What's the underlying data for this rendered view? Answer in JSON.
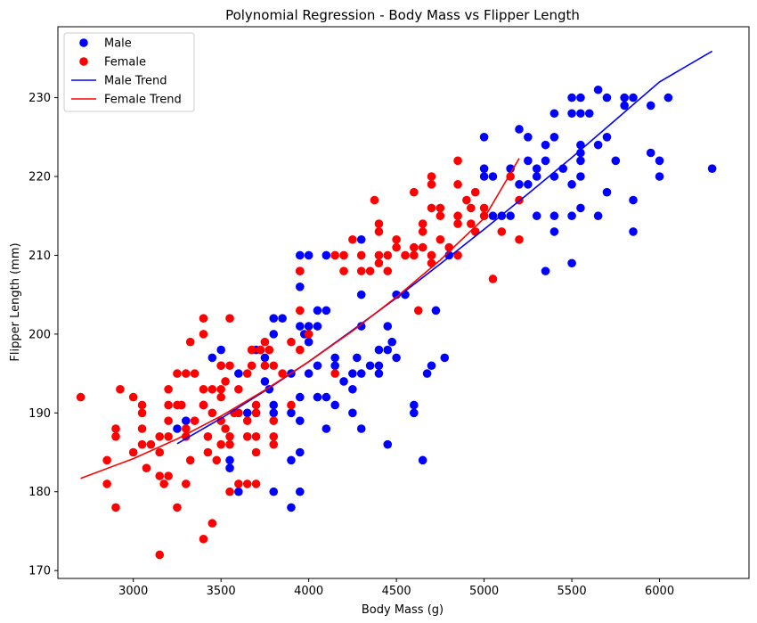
{
  "chart_data": {
    "type": "scatter",
    "title": "Polynomial Regression - Body Mass vs Flipper Length",
    "xlabel": "Body Mass (g)",
    "ylabel": "Flipper Length (mm)",
    "xlim": [
      2570,
      6510
    ],
    "ylim": [
      169,
      239
    ],
    "xticks": [
      3000,
      3500,
      4000,
      4500,
      5000,
      5500,
      6000
    ],
    "yticks": [
      170,
      180,
      190,
      200,
      210,
      220,
      230
    ],
    "grid": false,
    "legend_position": "top-left",
    "series": [
      {
        "name": "Male",
        "kind": "scatter",
        "color": "#0000ff",
        "points": [
          [
            3250,
            188
          ],
          [
            3300,
            189
          ],
          [
            3400,
            191
          ],
          [
            3450,
            197
          ],
          [
            3500,
            198
          ],
          [
            3500,
            196
          ],
          [
            3550,
            184
          ],
          [
            3550,
            183
          ],
          [
            3600,
            195
          ],
          [
            3600,
            180
          ],
          [
            3650,
            190
          ],
          [
            3700,
            198
          ],
          [
            3700,
            190
          ],
          [
            3750,
            197
          ],
          [
            3750,
            194
          ],
          [
            3775,
            193
          ],
          [
            3800,
            200
          ],
          [
            3800,
            202
          ],
          [
            3800,
            191
          ],
          [
            3800,
            190
          ],
          [
            3800,
            180
          ],
          [
            3850,
            202
          ],
          [
            3900,
            195
          ],
          [
            3900,
            190
          ],
          [
            3900,
            184
          ],
          [
            3900,
            178
          ],
          [
            3950,
            210
          ],
          [
            3950,
            206
          ],
          [
            3950,
            208
          ],
          [
            3950,
            201
          ],
          [
            3950,
            192
          ],
          [
            3950,
            189
          ],
          [
            3950,
            185
          ],
          [
            3950,
            180
          ],
          [
            3975,
            200
          ],
          [
            4000,
            210
          ],
          [
            4000,
            201
          ],
          [
            4000,
            199
          ],
          [
            4000,
            195
          ],
          [
            4050,
            203
          ],
          [
            4050,
            201
          ],
          [
            4050,
            196
          ],
          [
            4050,
            192
          ],
          [
            4100,
            210
          ],
          [
            4100,
            203
          ],
          [
            4100,
            192
          ],
          [
            4100,
            188
          ],
          [
            4150,
            197
          ],
          [
            4150,
            196
          ],
          [
            4150,
            191
          ],
          [
            4200,
            194
          ],
          [
            4250,
            195
          ],
          [
            4250,
            193
          ],
          [
            4250,
            190
          ],
          [
            4275,
            197
          ],
          [
            4300,
            212
          ],
          [
            4300,
            205
          ],
          [
            4300,
            201
          ],
          [
            4300,
            195
          ],
          [
            4300,
            188
          ],
          [
            4350,
            196
          ],
          [
            4400,
            198
          ],
          [
            4400,
            196
          ],
          [
            4400,
            195
          ],
          [
            4450,
            201
          ],
          [
            4450,
            198
          ],
          [
            4450,
            186
          ],
          [
            4475,
            199
          ],
          [
            4500,
            205
          ],
          [
            4500,
            197
          ],
          [
            4550,
            205
          ],
          [
            4600,
            191
          ],
          [
            4600,
            190
          ],
          [
            4650,
            184
          ],
          [
            4675,
            195
          ],
          [
            4700,
            196
          ],
          [
            4725,
            203
          ],
          [
            4775,
            197
          ],
          [
            4800,
            210
          ],
          [
            5000,
            225
          ],
          [
            5000,
            221
          ],
          [
            5000,
            220
          ],
          [
            5050,
            220
          ],
          [
            5050,
            215
          ],
          [
            5100,
            215
          ],
          [
            5150,
            221
          ],
          [
            5150,
            215
          ],
          [
            5200,
            226
          ],
          [
            5200,
            219
          ],
          [
            5250,
            225
          ],
          [
            5250,
            222
          ],
          [
            5250,
            219
          ],
          [
            5300,
            221
          ],
          [
            5300,
            220
          ],
          [
            5300,
            215
          ],
          [
            5350,
            224
          ],
          [
            5350,
            222
          ],
          [
            5350,
            208
          ],
          [
            5400,
            228
          ],
          [
            5400,
            225
          ],
          [
            5400,
            220
          ],
          [
            5400,
            215
          ],
          [
            5400,
            213
          ],
          [
            5450,
            221
          ],
          [
            5500,
            230
          ],
          [
            5500,
            228
          ],
          [
            5500,
            219
          ],
          [
            5500,
            215
          ],
          [
            5500,
            209
          ],
          [
            5550,
            230
          ],
          [
            5550,
            228
          ],
          [
            5550,
            224
          ],
          [
            5550,
            223
          ],
          [
            5550,
            222
          ],
          [
            5550,
            220
          ],
          [
            5550,
            216
          ],
          [
            5600,
            228
          ],
          [
            5650,
            231
          ],
          [
            5650,
            224
          ],
          [
            5650,
            215
          ],
          [
            5700,
            230
          ],
          [
            5700,
            225
          ],
          [
            5700,
            218
          ],
          [
            5750,
            222
          ],
          [
            5800,
            230
          ],
          [
            5800,
            229
          ],
          [
            5850,
            230
          ],
          [
            5850,
            217
          ],
          [
            5850,
            213
          ],
          [
            5950,
            229
          ],
          [
            5950,
            223
          ],
          [
            6000,
            222
          ],
          [
            6000,
            220
          ],
          [
            6050,
            230
          ],
          [
            6300,
            221
          ]
        ]
      },
      {
        "name": "Female",
        "kind": "scatter",
        "color": "#ff0000",
        "points": [
          [
            2700,
            192
          ],
          [
            2850,
            184
          ],
          [
            2850,
            181
          ],
          [
            2900,
            188
          ],
          [
            2900,
            187
          ],
          [
            2900,
            178
          ],
          [
            2925,
            193
          ],
          [
            3000,
            192
          ],
          [
            3000,
            185
          ],
          [
            3050,
            191
          ],
          [
            3050,
            190
          ],
          [
            3050,
            188
          ],
          [
            3050,
            186
          ],
          [
            3075,
            183
          ],
          [
            3100,
            186
          ],
          [
            3150,
            187
          ],
          [
            3150,
            185
          ],
          [
            3150,
            182
          ],
          [
            3150,
            172
          ],
          [
            3175,
            181
          ],
          [
            3200,
            193
          ],
          [
            3200,
            191
          ],
          [
            3200,
            189
          ],
          [
            3200,
            187
          ],
          [
            3200,
            182
          ],
          [
            3250,
            195
          ],
          [
            3250,
            191
          ],
          [
            3250,
            178
          ],
          [
            3275,
            191
          ],
          [
            3300,
            195
          ],
          [
            3300,
            188
          ],
          [
            3300,
            187
          ],
          [
            3300,
            181
          ],
          [
            3325,
            199
          ],
          [
            3325,
            184
          ],
          [
            3350,
            195
          ],
          [
            3350,
            189
          ],
          [
            3400,
            202
          ],
          [
            3400,
            200
          ],
          [
            3400,
            193
          ],
          [
            3400,
            191
          ],
          [
            3400,
            174
          ],
          [
            3425,
            187
          ],
          [
            3425,
            185
          ],
          [
            3450,
            193
          ],
          [
            3450,
            190
          ],
          [
            3450,
            176
          ],
          [
            3475,
            184
          ],
          [
            3500,
            196
          ],
          [
            3500,
            193
          ],
          [
            3500,
            192
          ],
          [
            3500,
            189
          ],
          [
            3500,
            186
          ],
          [
            3525,
            194
          ],
          [
            3525,
            188
          ],
          [
            3550,
            202
          ],
          [
            3550,
            196
          ],
          [
            3550,
            187
          ],
          [
            3550,
            186
          ],
          [
            3550,
            180
          ],
          [
            3575,
            190
          ],
          [
            3600,
            193
          ],
          [
            3600,
            190
          ],
          [
            3600,
            181
          ],
          [
            3650,
            195
          ],
          [
            3650,
            189
          ],
          [
            3650,
            187
          ],
          [
            3650,
            181
          ],
          [
            3675,
            196
          ],
          [
            3675,
            198
          ],
          [
            3700,
            191
          ],
          [
            3700,
            190
          ],
          [
            3700,
            187
          ],
          [
            3700,
            185
          ],
          [
            3700,
            181
          ],
          [
            3725,
            198
          ],
          [
            3750,
            199
          ],
          [
            3750,
            196
          ],
          [
            3775,
            198
          ],
          [
            3800,
            196
          ],
          [
            3800,
            189
          ],
          [
            3800,
            187
          ],
          [
            3800,
            186
          ],
          [
            3850,
            195
          ],
          [
            3900,
            199
          ],
          [
            3900,
            191
          ],
          [
            3950,
            208
          ],
          [
            3950,
            203
          ],
          [
            3950,
            198
          ],
          [
            4000,
            200
          ],
          [
            4150,
            210
          ],
          [
            4150,
            195
          ],
          [
            4200,
            210
          ],
          [
            4200,
            208
          ],
          [
            4250,
            212
          ],
          [
            4300,
            210
          ],
          [
            4300,
            208
          ],
          [
            4350,
            208
          ],
          [
            4375,
            217
          ],
          [
            4400,
            214
          ],
          [
            4400,
            213
          ],
          [
            4400,
            210
          ],
          [
            4400,
            209
          ],
          [
            4450,
            210
          ],
          [
            4450,
            208
          ],
          [
            4500,
            212
          ],
          [
            4500,
            211
          ],
          [
            4550,
            210
          ],
          [
            4600,
            218
          ],
          [
            4600,
            211
          ],
          [
            4600,
            210
          ],
          [
            4625,
            203
          ],
          [
            4650,
            214
          ],
          [
            4650,
            213
          ],
          [
            4650,
            211
          ],
          [
            4700,
            220
          ],
          [
            4700,
            219
          ],
          [
            4700,
            216
          ],
          [
            4700,
            210
          ],
          [
            4700,
            209
          ],
          [
            4750,
            216
          ],
          [
            4750,
            215
          ],
          [
            4750,
            212
          ],
          [
            4800,
            211
          ],
          [
            4850,
            222
          ],
          [
            4850,
            219
          ],
          [
            4850,
            215
          ],
          [
            4850,
            214
          ],
          [
            4850,
            210
          ],
          [
            4900,
            217
          ],
          [
            4925,
            216
          ],
          [
            4925,
            214
          ],
          [
            4950,
            218
          ],
          [
            4950,
            213
          ],
          [
            5000,
            216
          ],
          [
            5000,
            215
          ],
          [
            5050,
            207
          ],
          [
            5100,
            213
          ],
          [
            5150,
            220
          ],
          [
            5200,
            217
          ],
          [
            5200,
            212
          ]
        ]
      },
      {
        "name": "Male Trend",
        "kind": "line",
        "color": "#0000ff",
        "points": [
          [
            3250,
            186.1
          ],
          [
            3500,
            189.3
          ],
          [
            3750,
            192.8
          ],
          [
            4000,
            196.5
          ],
          [
            4250,
            200.5
          ],
          [
            4500,
            204.6
          ],
          [
            4750,
            208.9
          ],
          [
            5000,
            213.3
          ],
          [
            5250,
            217.8
          ],
          [
            5500,
            222.4
          ],
          [
            5750,
            227.2
          ],
          [
            6000,
            232.0
          ],
          [
            6300,
            235.9
          ]
        ]
      },
      {
        "name": "Female Trend",
        "kind": "line",
        "color": "#ff0000",
        "points": [
          [
            2700,
            181.7
          ],
          [
            3000,
            184.2
          ],
          [
            3250,
            186.7
          ],
          [
            3500,
            189.6
          ],
          [
            3750,
            192.9
          ],
          [
            4000,
            196.5
          ],
          [
            4250,
            200.4
          ],
          [
            4500,
            204.7
          ],
          [
            4750,
            209.4
          ],
          [
            5000,
            214.7
          ],
          [
            5200,
            222.3
          ]
        ]
      }
    ]
  }
}
